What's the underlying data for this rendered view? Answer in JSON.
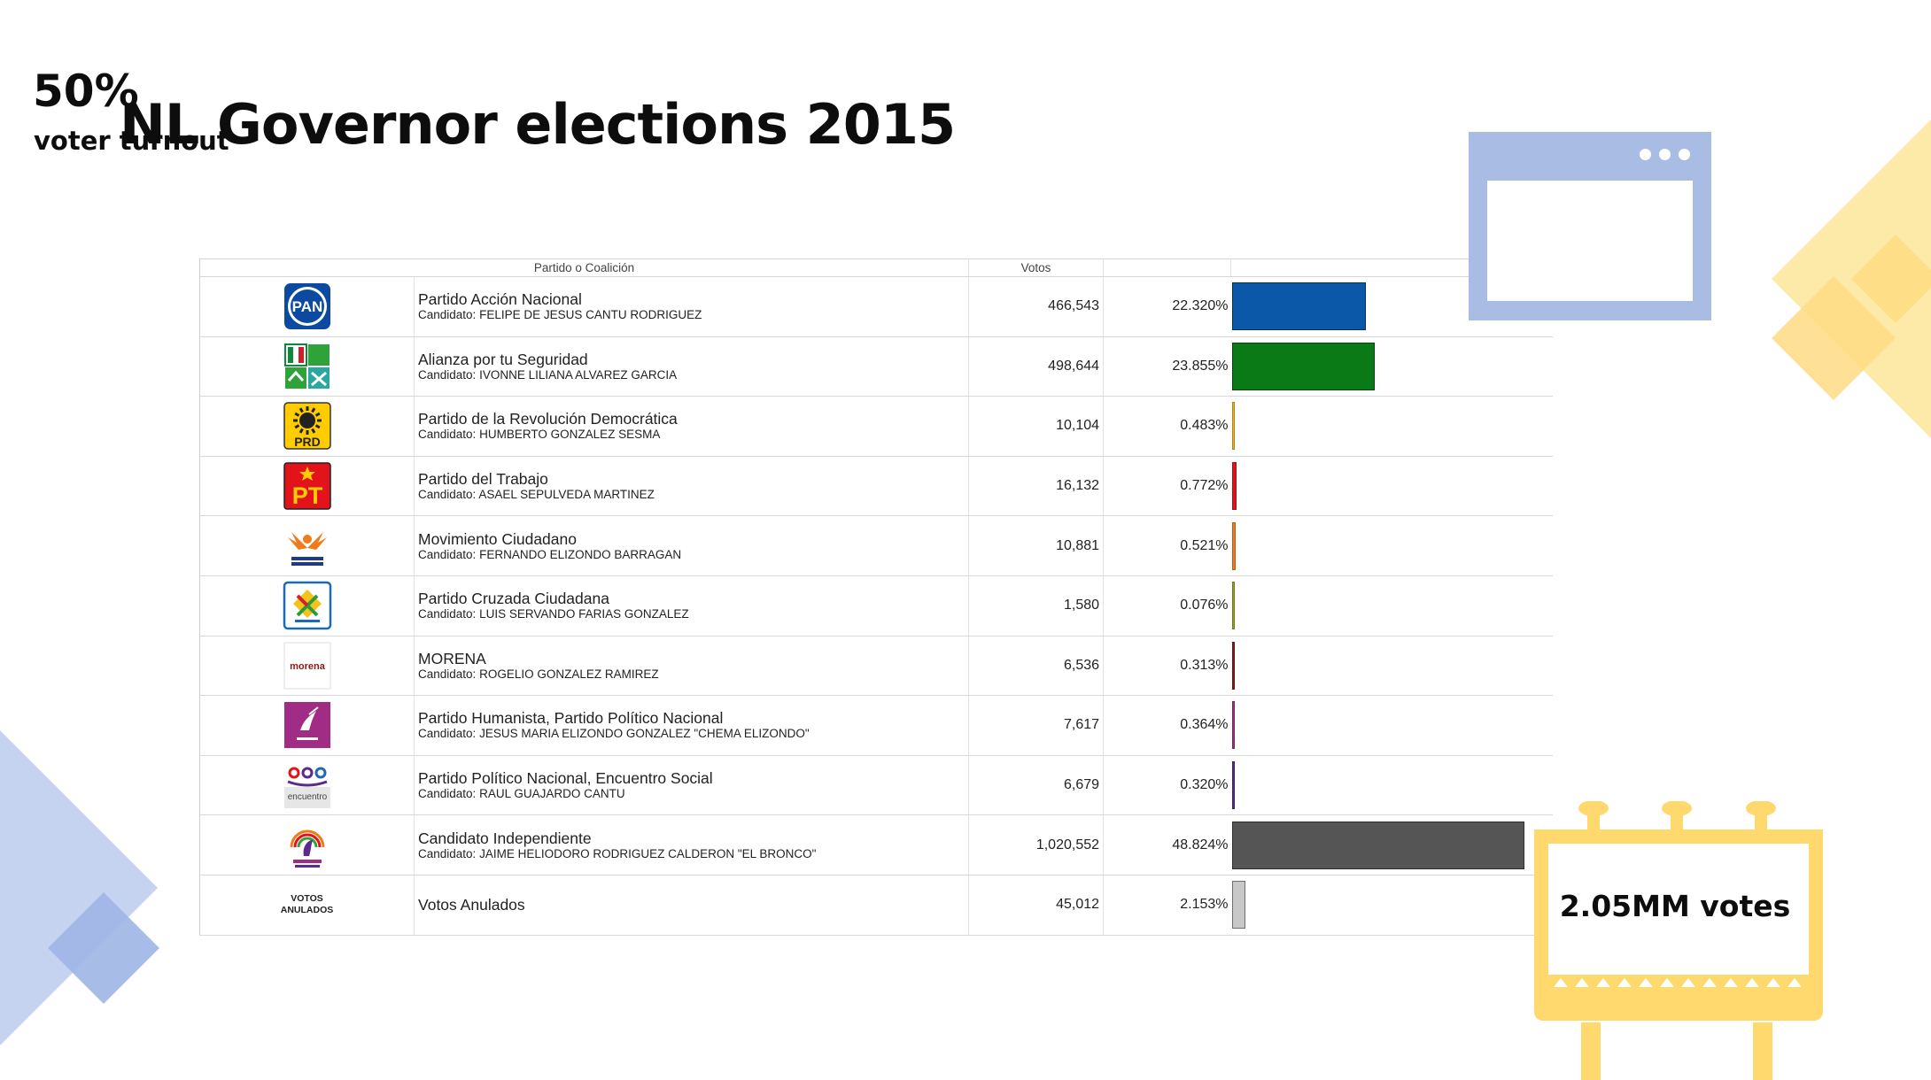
{
  "title": "NL Governor elections 2015",
  "table": {
    "headers": {
      "party": "Partido o Coalición",
      "votes": "Votos"
    },
    "rows": [
      {
        "logo": "pan-logo",
        "party": "Partido Acción Nacional",
        "candidate_prefix": "Candidato:",
        "candidate": "FELIPE DE JESUS CANTU RODRIGUEZ",
        "votes": "466,543",
        "pct": "22.320%",
        "share": 22.32,
        "color": "#0b57a8"
      },
      {
        "logo": "alianza-logo",
        "party": "Alianza por tu Seguridad",
        "candidate_prefix": "Candidato:",
        "candidate": "IVONNE LILIANA ALVAREZ GARCIA",
        "votes": "498,644",
        "pct": "23.855%",
        "share": 23.855,
        "color": "#0a7a17"
      },
      {
        "logo": "prd-logo",
        "party": "Partido de la Revolución Democrática",
        "candidate_prefix": "Candidato:",
        "candidate": "HUMBERTO GONZALEZ SESMA",
        "votes": "10,104",
        "pct": "0.483%",
        "share": 0.483,
        "color": "#f2b01e"
      },
      {
        "logo": "pt-logo",
        "party": "Partido del Trabajo",
        "candidate_prefix": "Candidato:",
        "candidate": "ASAEL SEPULVEDA MARTINEZ",
        "votes": "16,132",
        "pct": "0.772%",
        "share": 0.772,
        "color": "#e3131b"
      },
      {
        "logo": "mc-logo",
        "party": "Movimiento Ciudadano",
        "candidate_prefix": "Candidato:",
        "candidate": "FERNANDO ELIZONDO BARRAGAN",
        "votes": "10,881",
        "pct": "0.521%",
        "share": 0.521,
        "color": "#f07b1a"
      },
      {
        "logo": "cruzada-logo",
        "party": "Partido Cruzada Ciudadana",
        "candidate_prefix": "Candidato:",
        "candidate": "LUIS SERVANDO FARIAS GONZALEZ",
        "votes": "1,580",
        "pct": "0.076%",
        "share": 0.076,
        "color": "#9aa21c"
      },
      {
        "logo": "morena-logo",
        "party": "MORENA",
        "candidate_prefix": "Candidato:",
        "candidate": "ROGELIO GONZALEZ RAMIREZ",
        "votes": "6,536",
        "pct": "0.313%",
        "share": 0.313,
        "color": "#8a1a18"
      },
      {
        "logo": "humanista-logo",
        "party": "Partido Humanista, Partido Político Nacional",
        "candidate_prefix": "Candidato:",
        "candidate": "JESUS MARIA ELIZONDO GONZALEZ \"CHEMA ELIZONDO\"",
        "votes": "7,617",
        "pct": "0.364%",
        "share": 0.364,
        "color": "#a0308a"
      },
      {
        "logo": "encuentro-logo",
        "party": "Partido Político Nacional, Encuentro Social",
        "candidate_prefix": "Candidato:",
        "candidate": "RAUL GUAJARDO CANTU",
        "votes": "6,679",
        "pct": "0.320%",
        "share": 0.32,
        "color": "#5b2a8c"
      },
      {
        "logo": "bronco-logo",
        "party": "Candidato Independiente",
        "candidate_prefix": "Candidato:",
        "candidate": "JAIME HELIODORO RODRIGUEZ CALDERON \"EL BRONCO\"",
        "votes": "1,020,552",
        "pct": "48.824%",
        "share": 48.824,
        "color": "#555555"
      },
      {
        "logo": "votos-anulados-label",
        "logo_text_1": "VOTOS",
        "logo_text_2": "ANULADOS",
        "party": "Votos Anulados",
        "candidate_prefix": "",
        "candidate": "",
        "votes": "45,012",
        "pct": "2.153%",
        "share": 2.153,
        "color": "#c8c8c8"
      }
    ]
  },
  "logo_texts": {
    "pan": "PAN",
    "prd": "PRD",
    "pt": "PT",
    "morena": "morena",
    "encuentro": "encuentro"
  },
  "turnout": {
    "value": "50%",
    "label": "voter turnout"
  },
  "votes_total": {
    "label": "2.05MM votes"
  },
  "colors": {
    "accent_blue": "#a9bde4",
    "accent_yellow": "#ffe082",
    "billboard_yellow": "#ffd86e"
  }
}
